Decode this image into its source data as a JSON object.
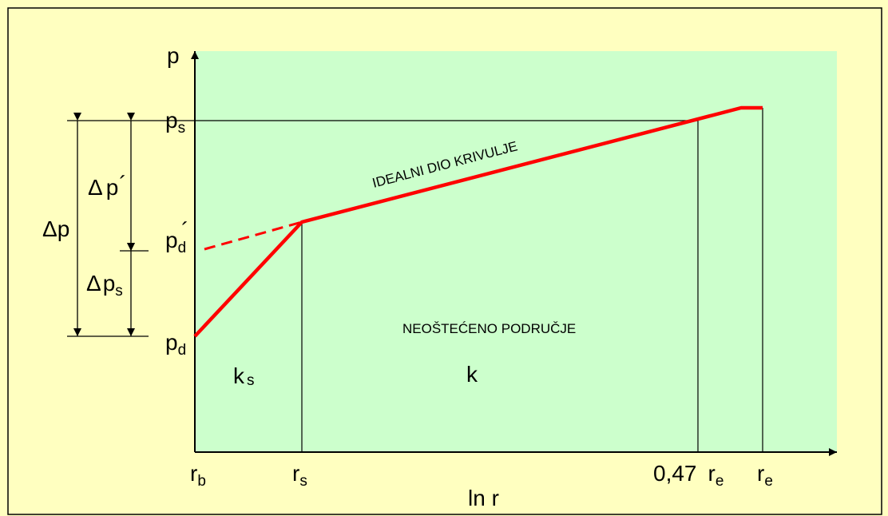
{
  "diagram": {
    "axes": {
      "y_label": "p",
      "x_label": "ln r"
    },
    "pressure_labels": {
      "ps": {
        "main": "p",
        "sub": "s"
      },
      "pd_prime": {
        "main": "p",
        "sub": "d",
        "mark": "´"
      },
      "pd": {
        "main": "p",
        "sub": "d"
      }
    },
    "delta_labels": {
      "dp": {
        "sym": "Δ",
        "main": "p"
      },
      "dp_prime": {
        "sym": "Δ",
        "main": "p",
        "mark": "´"
      },
      "dps": {
        "sym": "Δ",
        "main": "p",
        "sub": "s"
      }
    },
    "radius_labels": {
      "rb": {
        "main": "r",
        "sub": "b"
      },
      "rs": {
        "main": "r",
        "sub": "s"
      },
      "re047": {
        "prefix": "0,47",
        "main": "r",
        "sub": "e"
      },
      "re": {
        "main": "r",
        "sub": "e"
      }
    },
    "zone_labels": {
      "ks": {
        "main": "k",
        "sub": "s"
      },
      "k": "k"
    },
    "annotations": {
      "ideal_curve": "IDEALNI DIO KRIVULJE",
      "undamaged_zone": "NEOŠTEĆENO PODRUČJE"
    },
    "colors": {
      "outer_background": "#ffffc0",
      "plot_background": "#ccffcc",
      "curve": "#ff0000",
      "lines": "#000000"
    }
  }
}
